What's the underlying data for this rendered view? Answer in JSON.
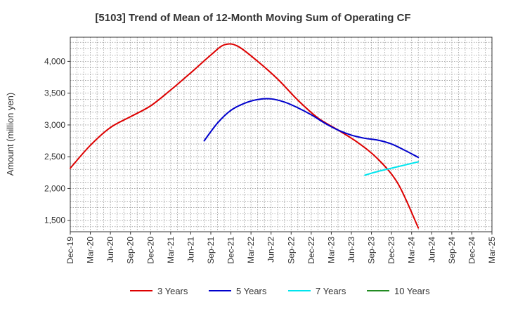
{
  "chart_data": {
    "type": "line",
    "title": "[5103]  Trend of Mean of 12-Month Moving Sum of Operating CF",
    "xlabel": "",
    "ylabel": "Amount (million yen)",
    "ylim": [
      1320,
      4380
    ],
    "yticks": [
      1500,
      2000,
      2500,
      3000,
      3500,
      4000
    ],
    "ytick_labels": [
      "1,500",
      "2,000",
      "2,500",
      "3,000",
      "3,500",
      "4,000"
    ],
    "x_start": "Dec-19",
    "x_months": 63,
    "x_tick_labels": [
      "Dec-19",
      "Mar-20",
      "Jun-20",
      "Sep-20",
      "Dec-20",
      "Mar-21",
      "Jun-21",
      "Sep-21",
      "Dec-21",
      "Mar-22",
      "Jun-22",
      "Sep-22",
      "Dec-22",
      "Mar-23",
      "Jun-23",
      "Sep-23",
      "Dec-23",
      "Mar-24",
      "Jun-24",
      "Sep-24",
      "Dec-24",
      "Mar-25"
    ],
    "grid": true,
    "legend_position": "bottom",
    "series": [
      {
        "name": "3 Years",
        "color": "#dd0000",
        "points": [
          [
            0,
            2320
          ],
          [
            3,
            2680
          ],
          [
            6,
            2960
          ],
          [
            9,
            3130
          ],
          [
            12,
            3300
          ],
          [
            15,
            3550
          ],
          [
            18,
            3820
          ],
          [
            21,
            4100
          ],
          [
            23,
            4260
          ],
          [
            25,
            4240
          ],
          [
            28,
            4000
          ],
          [
            31,
            3720
          ],
          [
            34,
            3390
          ],
          [
            37,
            3110
          ],
          [
            40,
            2920
          ],
          [
            43,
            2720
          ],
          [
            46,
            2460
          ],
          [
            49,
            2070
          ],
          [
            52,
            1380
          ]
        ]
      },
      {
        "name": "5 Years",
        "color": "#0000cc",
        "points": [
          [
            20,
            2750
          ],
          [
            22,
            3030
          ],
          [
            24,
            3230
          ],
          [
            26,
            3340
          ],
          [
            28,
            3400
          ],
          [
            30,
            3410
          ],
          [
            32,
            3360
          ],
          [
            34,
            3270
          ],
          [
            36,
            3160
          ],
          [
            38,
            3030
          ],
          [
            40,
            2920
          ],
          [
            42,
            2840
          ],
          [
            44,
            2790
          ],
          [
            46,
            2760
          ],
          [
            48,
            2700
          ],
          [
            50,
            2600
          ],
          [
            52,
            2490
          ]
        ]
      },
      {
        "name": "7 Years",
        "color": "#00e5ee",
        "points": [
          [
            44,
            2210
          ],
          [
            46,
            2270
          ],
          [
            48,
            2320
          ],
          [
            50,
            2370
          ],
          [
            52,
            2420
          ]
        ]
      },
      {
        "name": "10 Years",
        "color": "#228b22",
        "points": []
      }
    ]
  }
}
